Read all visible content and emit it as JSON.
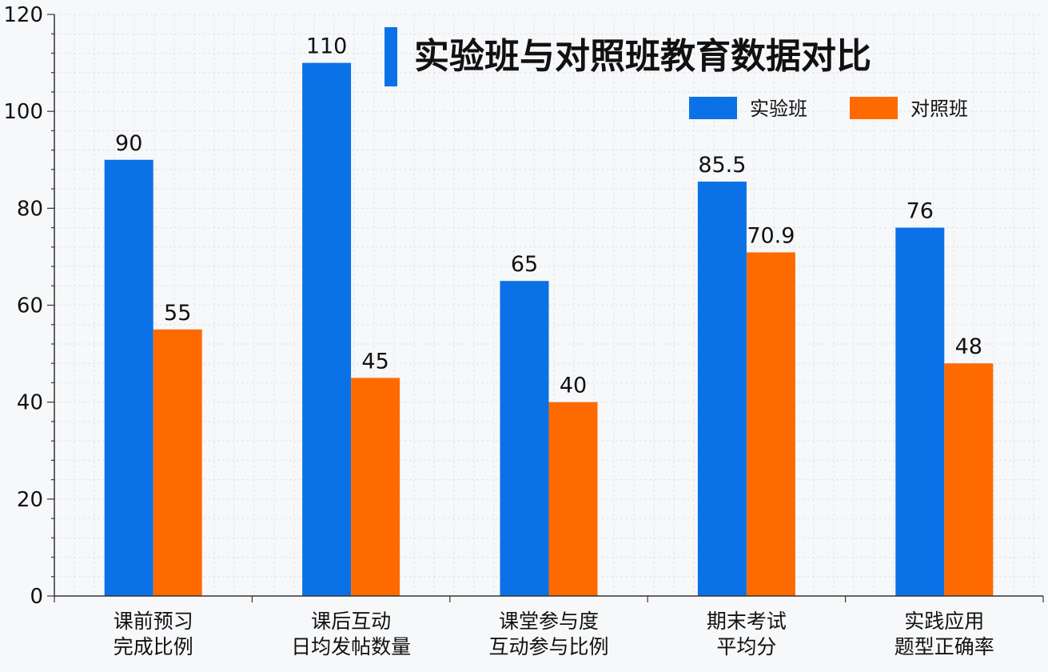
{
  "chart_data": {
    "type": "bar",
    "title": "实验班与对照班教育数据对比",
    "categories": [
      [
        "课前预习",
        "完成比例"
      ],
      [
        "课后互动",
        "日均发帖数量"
      ],
      [
        "课堂参与度",
        "互动参与比例"
      ],
      [
        "期末考试",
        "平均分"
      ],
      [
        "实践应用",
        "题型正确率"
      ]
    ],
    "series": [
      {
        "name": "实验班",
        "color": "#0a72e6",
        "values": [
          90,
          110,
          65,
          85.5,
          76
        ]
      },
      {
        "name": "对照班",
        "color": "#ff6a00",
        "values": [
          55,
          45,
          40,
          70.9,
          48
        ]
      }
    ],
    "ylim": [
      0,
      120
    ],
    "yticks": [
      0,
      20,
      40,
      60,
      80,
      100,
      120
    ],
    "grid": true,
    "legend": "top-right",
    "xlabel": "",
    "ylabel": ""
  }
}
